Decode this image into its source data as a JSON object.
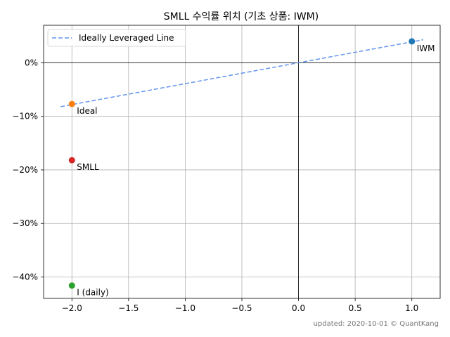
{
  "chart_data": {
    "type": "scatter",
    "title": "SMLL 수익률 위치 (기초 상품: IWM)",
    "xlabel": "",
    "ylabel": "",
    "xlim": [
      -2.25,
      1.25
    ],
    "ylim": [
      -0.44,
      0.07
    ],
    "x_ticks": [
      -2.0,
      -1.5,
      -1.0,
      -0.5,
      0.0,
      0.5,
      1.0
    ],
    "x_tick_labels": [
      "−2.0",
      "−1.5",
      "−1.0",
      "−0.5",
      "0.0",
      "0.5",
      "1.0"
    ],
    "y_ticks": [
      0.0,
      -0.1,
      -0.2,
      -0.3,
      -0.4
    ],
    "y_tick_labels": [
      "0%",
      "−10%",
      "−20%",
      "−30%",
      "−40%"
    ],
    "grid": true,
    "legend_position": "top-left",
    "line": {
      "name": "Ideally Leveraged Line",
      "x": [
        -2.1,
        1.1
      ],
      "y": [
        -0.082,
        0.043
      ],
      "color": "#6495ed",
      "style": "dashed"
    },
    "points": [
      {
        "label": "IWM",
        "x": 1.0,
        "y": 0.04,
        "color": "#1f77b4"
      },
      {
        "label": "Ideal",
        "x": -2.0,
        "y": -0.077,
        "color": "#ff7f0e"
      },
      {
        "label": "SMLL",
        "x": -2.0,
        "y": -0.182,
        "color": "#d62728"
      },
      {
        "label": "I (daily)",
        "x": -2.0,
        "y": -0.416,
        "color": "#2ca02c"
      }
    ]
  },
  "footer": "updated: 2020-10-01 © QuantKang"
}
